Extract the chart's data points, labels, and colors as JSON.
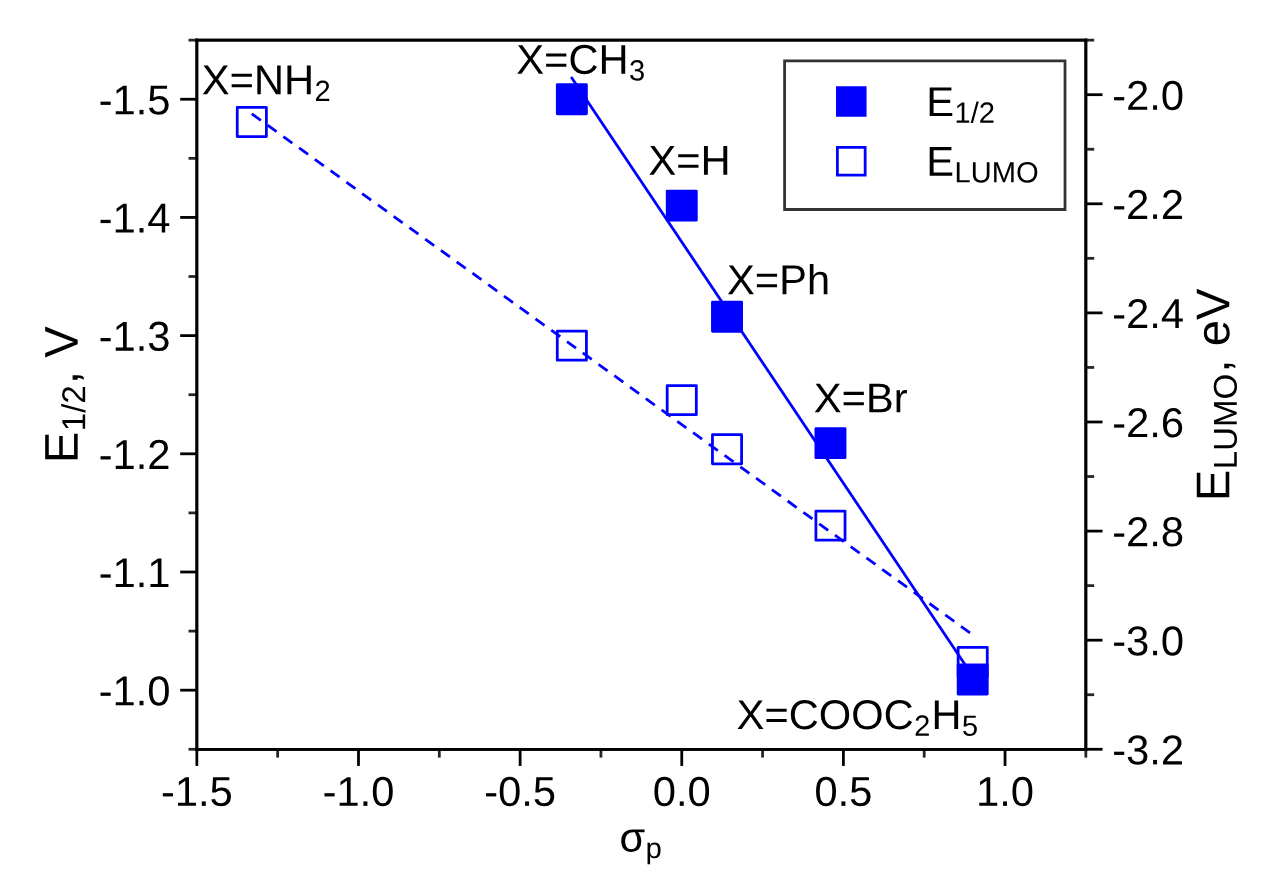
{
  "chart_data": {
    "type": "scatter",
    "xlabel": "σ$_{p}$",
    "ylabel": "E$_{1/2}$, V",
    "y2label": "E$_{LUMO}$, eV",
    "xlim": [
      -1.5,
      1.25
    ],
    "xticks": [
      {
        "value": -1.5,
        "label": "-1.5"
      },
      {
        "value": -1.0,
        "label": "-1.0"
      },
      {
        "value": -0.5,
        "label": "-0.5"
      },
      {
        "value": 0.0,
        "label": "0.0"
      },
      {
        "value": 0.5,
        "label": "0.5"
      },
      {
        "value": 1.0,
        "label": "1.0"
      }
    ],
    "ylim": [
      -0.95,
      -1.55
    ],
    "yticks": [
      {
        "value": -1.0,
        "label": "-1.0"
      },
      {
        "value": -1.1,
        "label": "-1.1"
      },
      {
        "value": -1.2,
        "label": "-1.2"
      },
      {
        "value": -1.3,
        "label": "-1.3"
      },
      {
        "value": -1.4,
        "label": "-1.4"
      },
      {
        "value": -1.5,
        "label": "-1.5"
      }
    ],
    "y2lim": [
      -3.2,
      -1.9
    ],
    "y2ticks": [
      {
        "value": -3.2,
        "label": "-3.2"
      },
      {
        "value": -3.0,
        "label": "-3.0"
      },
      {
        "value": -2.8,
        "label": "-2.8"
      },
      {
        "value": -2.6,
        "label": "-2.6"
      },
      {
        "value": -2.4,
        "label": "-2.4"
      },
      {
        "value": -2.2,
        "label": "-2.2"
      },
      {
        "value": -2.0,
        "label": "-2.0"
      }
    ],
    "legend": "top right",
    "grid": false,
    "series": [
      {
        "name": "E$_{1/2}$",
        "marker": "square",
        "color": "#0000ff",
        "x": [
          -0.34,
          0.0,
          0.14,
          0.46,
          0.9
        ],
        "values": [
          -1.5,
          -1.41,
          -1.316,
          -1.209,
          -1.009
        ]
      },
      {
        "name": "E$_{LUMO}$",
        "marker": "square",
        "axis": "y2",
        "color": "#0000ff",
        "x": [
          -1.33,
          -0.34,
          0.0,
          0.14,
          0.46,
          0.9
        ],
        "values": [
          -2.05,
          -2.46,
          -2.56,
          -2.65,
          -2.79,
          -3.04
        ]
      },
      {
        "type": "line",
        "color": "#0000ff",
        "line_style": "solid",
        "x": [
          -0.34,
          0.89
        ],
        "values": [
          -1.518,
          -1.016
        ]
      },
      {
        "type": "line",
        "axis": "y2",
        "color": "#0000ff",
        "line_style": "dashed",
        "x": [
          -1.33,
          0.9
        ],
        "values": [
          -2.035,
          -2.99
        ]
      }
    ],
    "annotations": [
      {
        "text": "X=NH$_{2}$",
        "x": -1.33,
        "y": -1.478
      },
      {
        "text": "X=CH$_{3}$",
        "x": -0.34,
        "y": -1.5
      },
      {
        "text": "X=H",
        "x": 0.0,
        "y": -1.41
      },
      {
        "text": "X=Ph",
        "x": 0.14,
        "y": -1.316
      },
      {
        "text": "X=Br",
        "x": 0.46,
        "y": -1.209
      },
      {
        "text": "X=COOC$_{2}$H$_{5}$",
        "x": 0.9,
        "y": -1.009
      }
    ]
  }
}
